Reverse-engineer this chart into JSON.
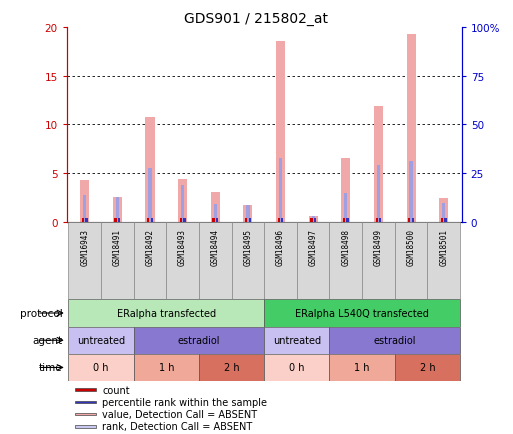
{
  "title": "GDS901 / 215802_at",
  "samples": [
    "GSM16943",
    "GSM18491",
    "GSM18492",
    "GSM18493",
    "GSM18494",
    "GSM18495",
    "GSM18496",
    "GSM18497",
    "GSM18498",
    "GSM18499",
    "GSM18500",
    "GSM18501"
  ],
  "pink_bars": [
    4.3,
    2.5,
    10.8,
    4.4,
    3.1,
    1.7,
    18.6,
    0.6,
    6.5,
    11.9,
    19.3,
    2.4
  ],
  "blue_bars": [
    2.7,
    2.5,
    5.5,
    3.8,
    1.8,
    1.7,
    6.6,
    0.55,
    2.9,
    5.8,
    6.2,
    1.9
  ],
  "red_marks": [
    0.35,
    0.35,
    0.35,
    0.35,
    0.35,
    0.35,
    0.35,
    0.35,
    0.35,
    0.35,
    0.35,
    0.35
  ],
  "blue_marks": [
    0.35,
    0.35,
    0.35,
    0.35,
    0.35,
    0.35,
    0.35,
    0.35,
    0.35,
    0.35,
    0.35,
    0.35
  ],
  "ylim": [
    0,
    20
  ],
  "yticks": [
    0,
    5,
    10,
    15,
    20
  ],
  "ytick_labels_left": [
    "0",
    "5",
    "10",
    "15",
    "20"
  ],
  "ytick_labels_right": [
    "0",
    "25",
    "50",
    "75",
    "100%"
  ],
  "protocol_labels": [
    "ERalpha transfected",
    "ERalpha L540Q transfected"
  ],
  "protocol_colors": [
    "#b8e8b8",
    "#44cc66"
  ],
  "agent_defs": [
    {
      "span": [
        0,
        1
      ],
      "label": "untreated",
      "color": "#c8c0f0"
    },
    {
      "span": [
        2,
        5
      ],
      "label": "estradiol",
      "color": "#8878d0"
    },
    {
      "span": [
        6,
        7
      ],
      "label": "untreated",
      "color": "#c8c0f0"
    },
    {
      "span": [
        8,
        11
      ],
      "label": "estradiol",
      "color": "#8878d0"
    }
  ],
  "time_defs": [
    {
      "span": [
        0,
        1
      ],
      "label": "0 h",
      "color": "#fad0c8"
    },
    {
      "span": [
        2,
        3
      ],
      "label": "1 h",
      "color": "#f0a898"
    },
    {
      "span": [
        4,
        5
      ],
      "label": "2 h",
      "color": "#d87060"
    },
    {
      "span": [
        6,
        7
      ],
      "label": "0 h",
      "color": "#fad0c8"
    },
    {
      "span": [
        8,
        9
      ],
      "label": "1 h",
      "color": "#f0a898"
    },
    {
      "span": [
        10,
        11
      ],
      "label": "2 h",
      "color": "#d87060"
    }
  ],
  "pink_color": "#f0a8a8",
  "blue_bar_color": "#a0a0e0",
  "red_mark_color": "#cc0000",
  "blue_mark_color": "#3333bb",
  "bg_chart": "#ffffff",
  "bg_sample": "#d8d8d8",
  "title_fontsize": 10,
  "axis_color_left": "#cc0000",
  "axis_color_right": "#0000cc",
  "legend_items": [
    {
      "color": "#cc0000",
      "label": "count"
    },
    {
      "color": "#3333bb",
      "label": "percentile rank within the sample"
    },
    {
      "color": "#f0a8a8",
      "label": "value, Detection Call = ABSENT"
    },
    {
      "color": "#c8c8f0",
      "label": "rank, Detection Call = ABSENT"
    }
  ]
}
